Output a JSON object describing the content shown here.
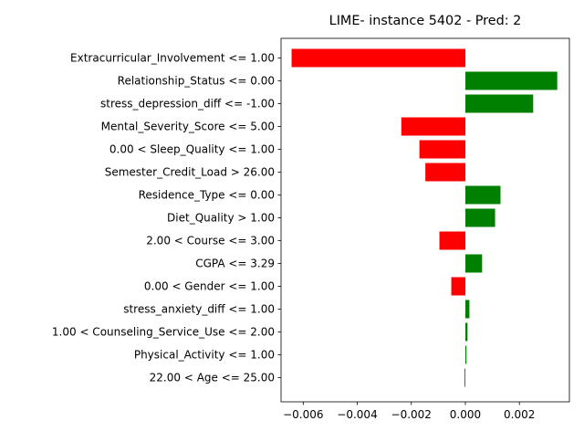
{
  "chart_data": {
    "type": "bar",
    "orientation": "horizontal",
    "title": "LIME- instance 5402 - Pred: 2",
    "xlabel": "",
    "ylabel": "",
    "xlim": [
      -0.00682,
      0.00385
    ],
    "xticks": [
      -0.006,
      -0.004,
      -0.002,
      0.0,
      0.002
    ],
    "xtick_labels": [
      "−0.006",
      "−0.004",
      "−0.002",
      "0.000",
      "0.002"
    ],
    "grid": false,
    "positive_color": "#008000",
    "negative_color": "#ff0000",
    "categories": [
      "Extracurricular_Involvement <= 1.00",
      "Relationship_Status <= 0.00",
      "stress_depression_diff <= -1.00",
      "Mental_Severity_Score <= 5.00",
      "0.00 < Sleep_Quality <= 1.00",
      "Semester_Credit_Load > 26.00",
      "Residence_Type <= 0.00",
      "Diet_Quality > 1.00",
      "2.00 < Course <= 3.00",
      "CGPA <= 3.29",
      "0.00 < Gender <= 1.00",
      "stress_anxiety_diff <= 1.00",
      "1.00 < Counseling_Service_Use <= 2.00",
      "Physical_Activity <= 1.00",
      "22.00 < Age <= 25.00"
    ],
    "values": [
      -0.00643,
      0.0034,
      0.00251,
      -0.00237,
      -0.0017,
      -0.00148,
      0.0013,
      0.0011,
      -0.00096,
      0.00062,
      -0.00052,
      0.00015,
      8e-05,
      4e-05,
      -3e-05
    ]
  }
}
